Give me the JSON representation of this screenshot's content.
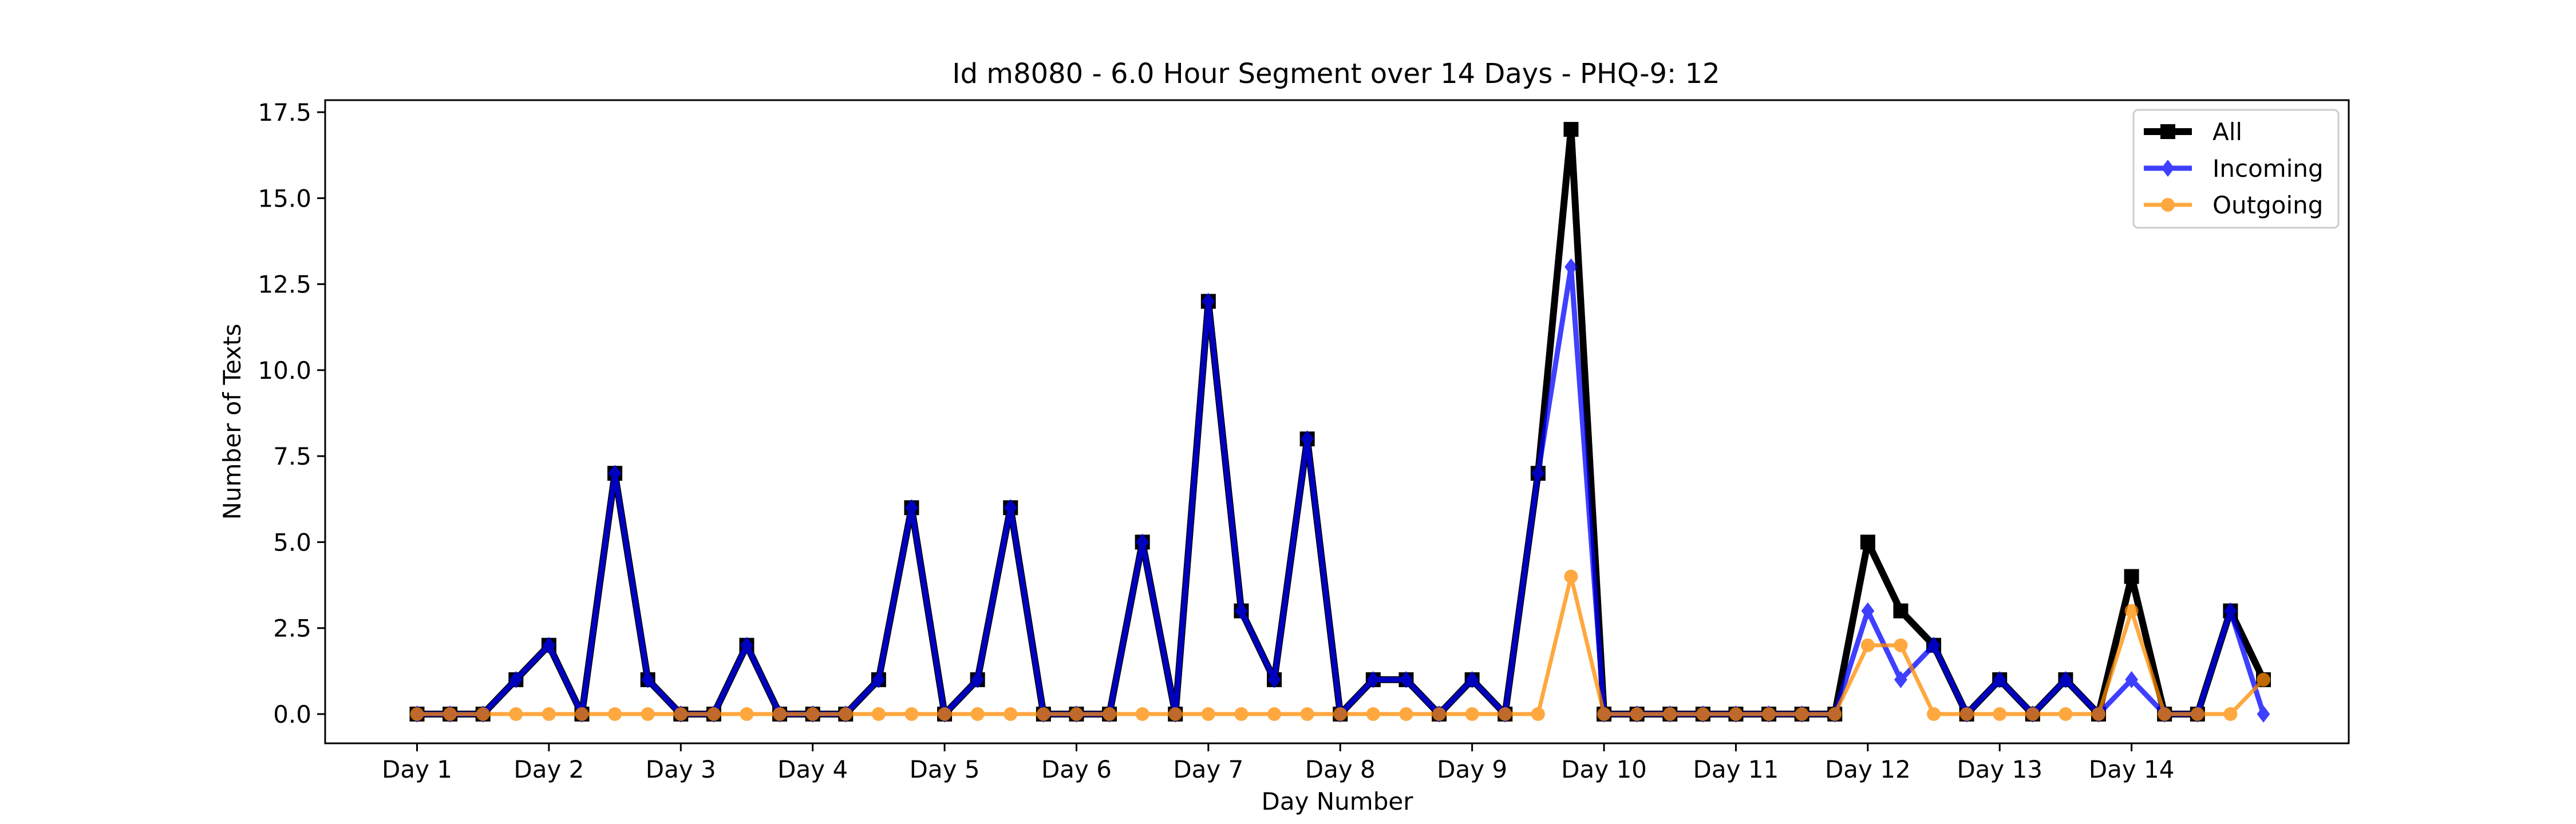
{
  "chart_data": {
    "type": "line",
    "title": "Id m8080 - 6.0 Hour Segment over 14 Days - PHQ-9: 12",
    "xlabel": "Day Number",
    "ylabel": "Number of Texts",
    "x_tick_labels": [
      "Day 1",
      "Day 2",
      "Day 3",
      "Day 4",
      "Day 5",
      "Day 6",
      "Day 7",
      "Day 8",
      "Day 9",
      "Day 10",
      "Day 11",
      "Day 12",
      "Day 13",
      "Day 14"
    ],
    "y_tick_labels": [
      "0.0",
      "2.5",
      "5.0",
      "7.5",
      "10.0",
      "12.5",
      "15.0",
      "17.5"
    ],
    "ylim": [
      -0.85,
      17.85
    ],
    "grid": false,
    "legend_position": "top-right",
    "series": [
      {
        "name": "All",
        "color": "#000000",
        "marker": "square",
        "values": [
          0,
          0,
          0,
          1,
          2,
          0,
          7,
          1,
          0,
          0,
          2,
          0,
          0,
          0,
          1,
          6,
          0,
          1,
          6,
          0,
          0,
          0,
          5,
          0,
          12,
          3,
          1,
          8,
          0,
          1,
          1,
          0,
          1,
          0,
          7,
          17,
          0,
          0,
          0,
          0,
          0,
          0,
          0,
          0,
          5,
          3,
          2,
          0,
          1,
          0,
          1,
          0,
          4,
          0,
          0,
          3,
          1
        ]
      },
      {
        "name": "Incoming",
        "color": "#0000ff",
        "marker": "diamond",
        "values": [
          0,
          0,
          0,
          1,
          2,
          0,
          7,
          1,
          0,
          0,
          2,
          0,
          0,
          0,
          1,
          6,
          0,
          1,
          6,
          0,
          0,
          0,
          5,
          0,
          12,
          3,
          1,
          8,
          0,
          1,
          1,
          0,
          1,
          0,
          7,
          13,
          0,
          0,
          0,
          0,
          0,
          0,
          0,
          0,
          3,
          1,
          2,
          0,
          1,
          0,
          1,
          0,
          1,
          0,
          0,
          3,
          0
        ]
      },
      {
        "name": "Outgoing",
        "color": "#ff8c00",
        "marker": "circle",
        "values": [
          0,
          0,
          0,
          0,
          0,
          0,
          0,
          0,
          0,
          0,
          0,
          0,
          0,
          0,
          0,
          0,
          0,
          0,
          0,
          0,
          0,
          0,
          0,
          0,
          0,
          0,
          0,
          0,
          0,
          0,
          0,
          0,
          0,
          0,
          0,
          4,
          0,
          0,
          0,
          0,
          0,
          0,
          0,
          0,
          2,
          2,
          0,
          0,
          0,
          0,
          0,
          0,
          3,
          0,
          0,
          0,
          1
        ]
      }
    ]
  }
}
